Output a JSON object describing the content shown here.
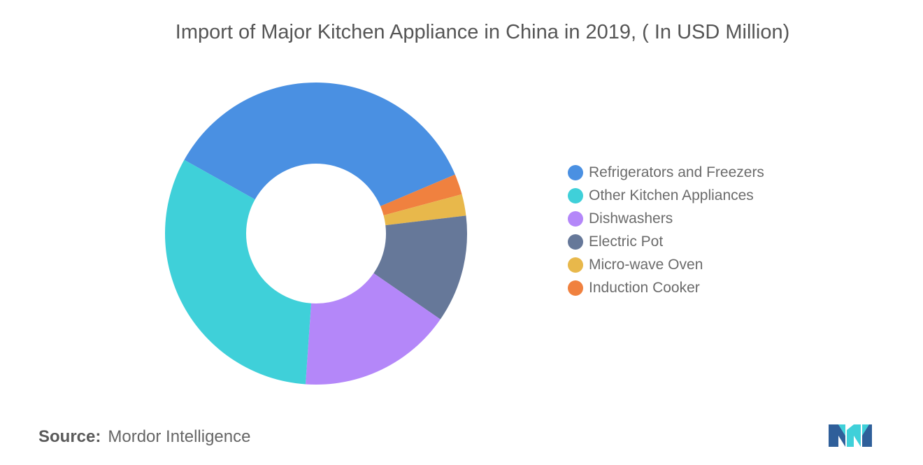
{
  "title": "Import of Major Kitchen Appliance in China in 2019, ( In USD Million)",
  "chart_data": {
    "type": "pie",
    "variant": "donut",
    "title": "Import of Major Kitchen Appliance in China in 2019, ( In USD Million)",
    "legend_position": "right",
    "series": [
      {
        "name": "Refrigerators and Freezers",
        "value": 35.5,
        "color": "#4a90e2"
      },
      {
        "name": "Induction Cooker",
        "value": 2.2,
        "color": "#f0813f"
      },
      {
        "name": "Micro-wave Oven",
        "value": 2.3,
        "color": "#e8b84b"
      },
      {
        "name": "Electric Pot",
        "value": 11.5,
        "color": "#667899"
      },
      {
        "name": "Dishwashers",
        "value": 16.5,
        "color": "#b487f9"
      },
      {
        "name": "Other Kitchen Appliances",
        "value": 32.0,
        "color": "#3fd0d9"
      }
    ],
    "legend_order": [
      "Refrigerators and Freezers",
      "Other Kitchen Appliances",
      "Dishwashers",
      "Electric Pot",
      "Micro-wave Oven",
      "Induction Cooker"
    ]
  },
  "source": {
    "label": "Source:",
    "text": "Mordor Intelligence"
  },
  "logo": {
    "icon": "mordor-intelligence-logo",
    "colors": [
      "#2f5f9a",
      "#3fd0d9"
    ]
  }
}
